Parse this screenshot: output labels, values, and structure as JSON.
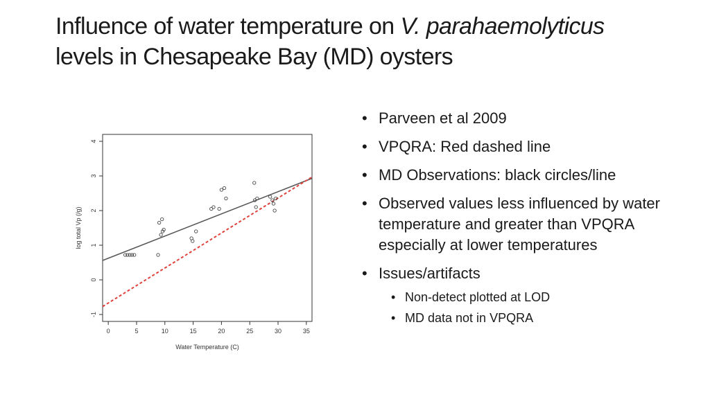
{
  "title": {
    "part1": "Influence of water temperature on ",
    "italic1": "V. parahaemolyticus",
    "part2": " levels in Chesapeake Bay (MD) oysters"
  },
  "bullets": [
    "Parveen et al 2009",
    "VPQRA: Red dashed line",
    "MD Observations: black circles/line",
    "Observed values less influenced by water temperature and greater than VPQRA especially at lower temperatures",
    "Issues/artifacts"
  ],
  "sub_bullets": [
    "Non-detect plotted at LOD",
    "MD data not in VPQRA"
  ],
  "chart_data": {
    "type": "scatter",
    "xlabel": "Water Temperature (C)",
    "ylabel": "log total Vp (/g)",
    "xlim": [
      -1,
      36
    ],
    "ylim": [
      -1.2,
      4.2
    ],
    "xticks": [
      0,
      5,
      10,
      15,
      20,
      25,
      30,
      35
    ],
    "yticks": [
      -1,
      0,
      1,
      2,
      3,
      4
    ],
    "points": [
      [
        3.0,
        0.72
      ],
      [
        3.4,
        0.72
      ],
      [
        3.8,
        0.72
      ],
      [
        4.2,
        0.72
      ],
      [
        4.6,
        0.72
      ],
      [
        8.8,
        0.72
      ],
      [
        9.0,
        1.65
      ],
      [
        9.3,
        1.3
      ],
      [
        9.5,
        1.75
      ],
      [
        9.6,
        1.4
      ],
      [
        9.8,
        1.45
      ],
      [
        14.7,
        1.2
      ],
      [
        14.9,
        1.12
      ],
      [
        15.5,
        1.4
      ],
      [
        18.2,
        2.05
      ],
      [
        18.6,
        2.1
      ],
      [
        19.6,
        2.05
      ],
      [
        20.0,
        2.6
      ],
      [
        20.5,
        2.65
      ],
      [
        20.8,
        2.35
      ],
      [
        25.8,
        2.8
      ],
      [
        25.9,
        2.3
      ],
      [
        26.1,
        2.1
      ],
      [
        26.3,
        2.35
      ],
      [
        28.6,
        2.4
      ],
      [
        29.0,
        2.3
      ],
      [
        29.2,
        2.2
      ],
      [
        29.4,
        2.0
      ],
      [
        29.6,
        2.35
      ]
    ],
    "lines": [
      {
        "color": "#555555",
        "style": "solid",
        "x": [
          -1,
          36
        ],
        "y": [
          0.56,
          2.93
        ]
      },
      {
        "color": "#e0413a",
        "style": "dashed",
        "x": [
          -1,
          36
        ],
        "y": [
          -0.77,
          2.97
        ]
      }
    ]
  }
}
